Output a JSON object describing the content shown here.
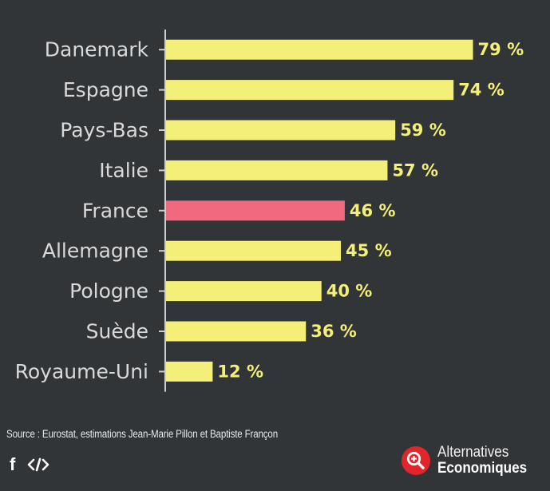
{
  "chart_data": {
    "type": "bar",
    "orientation": "horizontal",
    "categories": [
      "Danemark",
      "Espagne",
      "Pays-Bas",
      "Italie",
      "France",
      "Allemagne",
      "Pologne",
      "Suède",
      "Royaume-Uni"
    ],
    "values": [
      79,
      74,
      59,
      57,
      46,
      45,
      40,
      36,
      12
    ],
    "value_labels": [
      "79 %",
      "74 %",
      "59 %",
      "57 %",
      "46 %",
      "45 %",
      "40 %",
      "36 %",
      "12 %"
    ],
    "highlight": "France",
    "colors": {
      "bar": "#f3ef78",
      "highlight": "#f0697f",
      "axis": "#cfcfcf"
    },
    "xlim": [
      0,
      80
    ],
    "title": "",
    "xlabel": "",
    "ylabel": ""
  },
  "footer": {
    "source": "Source : Eurostat, estimations Jean-Marie Pillon et Baptiste Françon",
    "facebook_icon": "f",
    "brand_line1": "Alternatives",
    "brand_line2": "Economiques"
  }
}
